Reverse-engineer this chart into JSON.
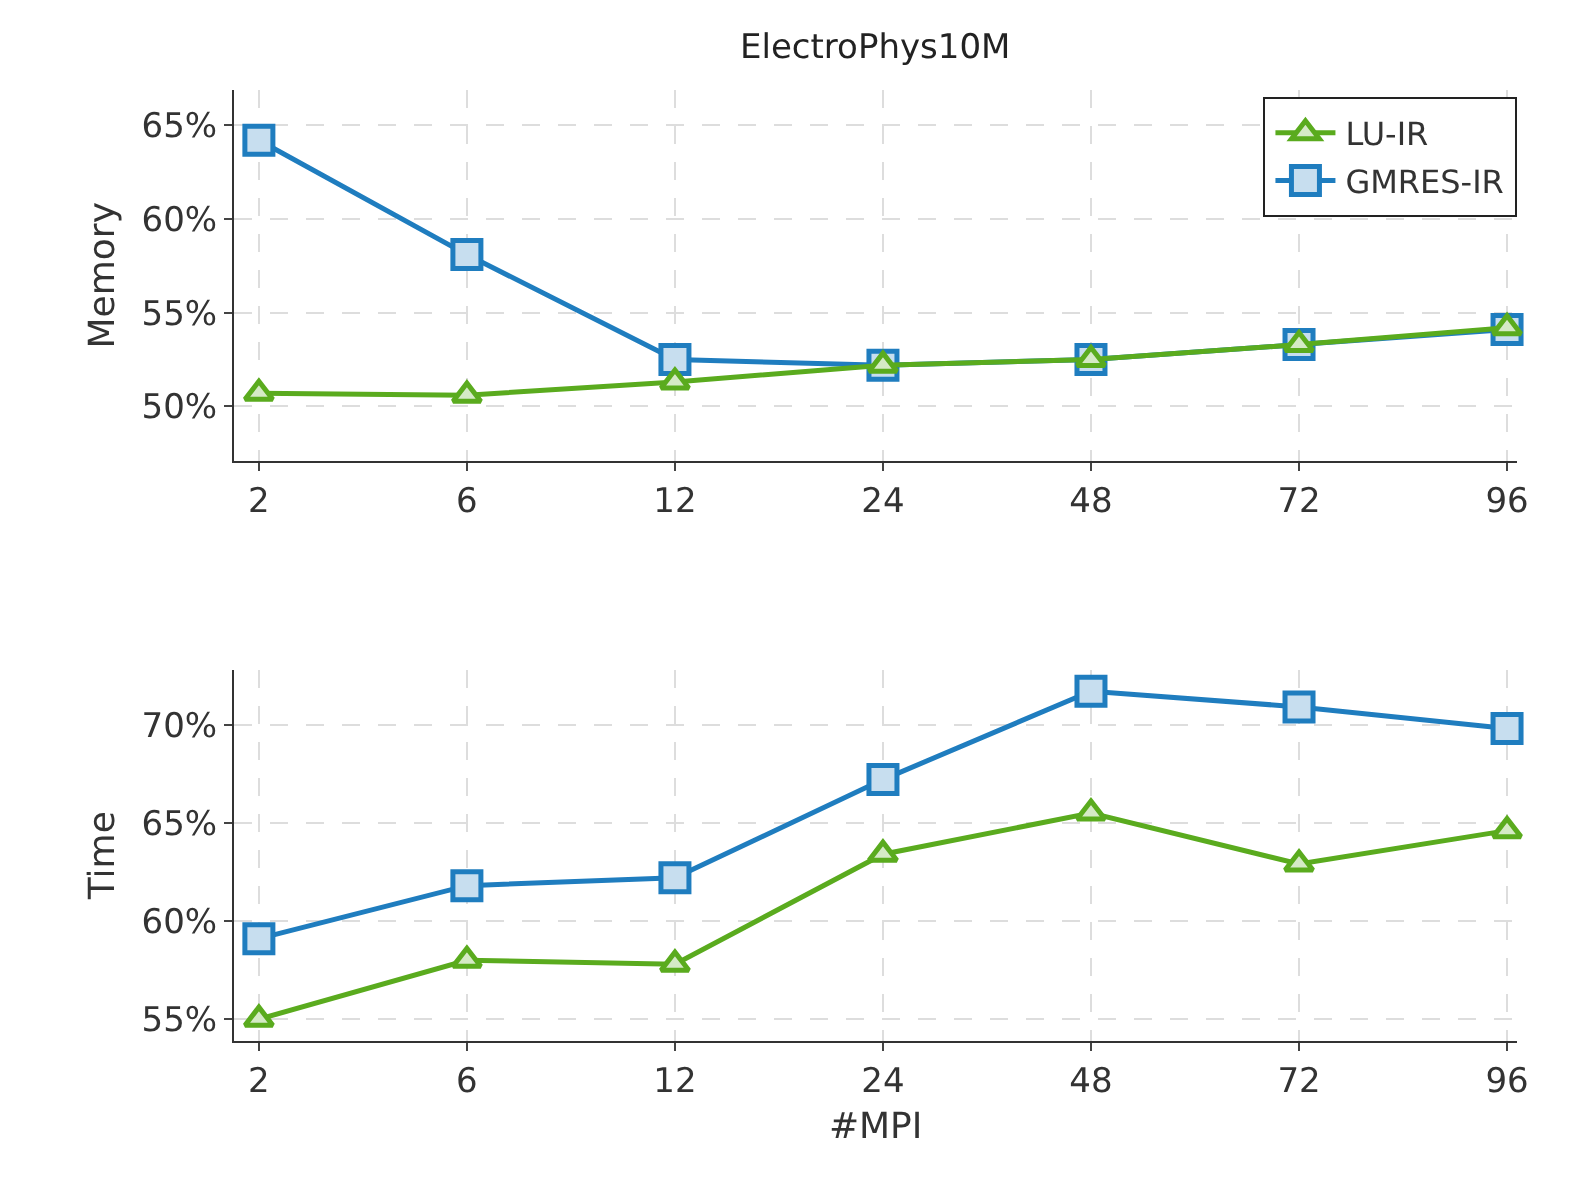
{
  "chart_data": [
    {
      "type": "line",
      "title": "ElectroPhys10M",
      "ylabel": "Memory",
      "categories": [
        "2",
        "6",
        "12",
        "24",
        "48",
        "72",
        "96"
      ],
      "ylim": [
        47.1,
        66.9
      ],
      "yticks": [
        {
          "value": 50,
          "label": "50%"
        },
        {
          "value": 55,
          "label": "55%"
        },
        {
          "value": 60,
          "label": "60%"
        },
        {
          "value": 65,
          "label": "65%"
        }
      ],
      "grid": true,
      "legend": "top right",
      "series": [
        {
          "name": "LU-IR",
          "color": "#5aab1e",
          "marker": "triangle",
          "values": [
            50.7,
            50.6,
            51.3,
            52.2,
            52.5,
            53.3,
            54.2
          ]
        },
        {
          "name": "GMRES-IR",
          "color": "#1f7dbf",
          "marker": "square",
          "values": [
            64.2,
            58.1,
            52.5,
            52.2,
            52.5,
            53.3,
            54.1
          ]
        }
      ]
    },
    {
      "type": "line",
      "ylabel": "Time",
      "xlabel": "#MPI",
      "categories": [
        "2",
        "6",
        "12",
        "24",
        "48",
        "72",
        "96"
      ],
      "ylim": [
        53.9,
        72.8
      ],
      "yticks": [
        {
          "value": 55,
          "label": "55%"
        },
        {
          "value": 60,
          "label": "60%"
        },
        {
          "value": 65,
          "label": "65%"
        },
        {
          "value": 70,
          "label": "70%"
        }
      ],
      "grid": true,
      "series": [
        {
          "color": "#5aab1e",
          "marker": "triangle",
          "values": [
            55.0,
            58.0,
            57.8,
            63.4,
            65.5,
            62.9,
            64.6
          ]
        },
        {
          "color": "#1f7dbf",
          "marker": "square",
          "values": [
            59.1,
            61.8,
            62.2,
            67.2,
            71.7,
            70.9,
            69.8
          ]
        }
      ]
    }
  ]
}
